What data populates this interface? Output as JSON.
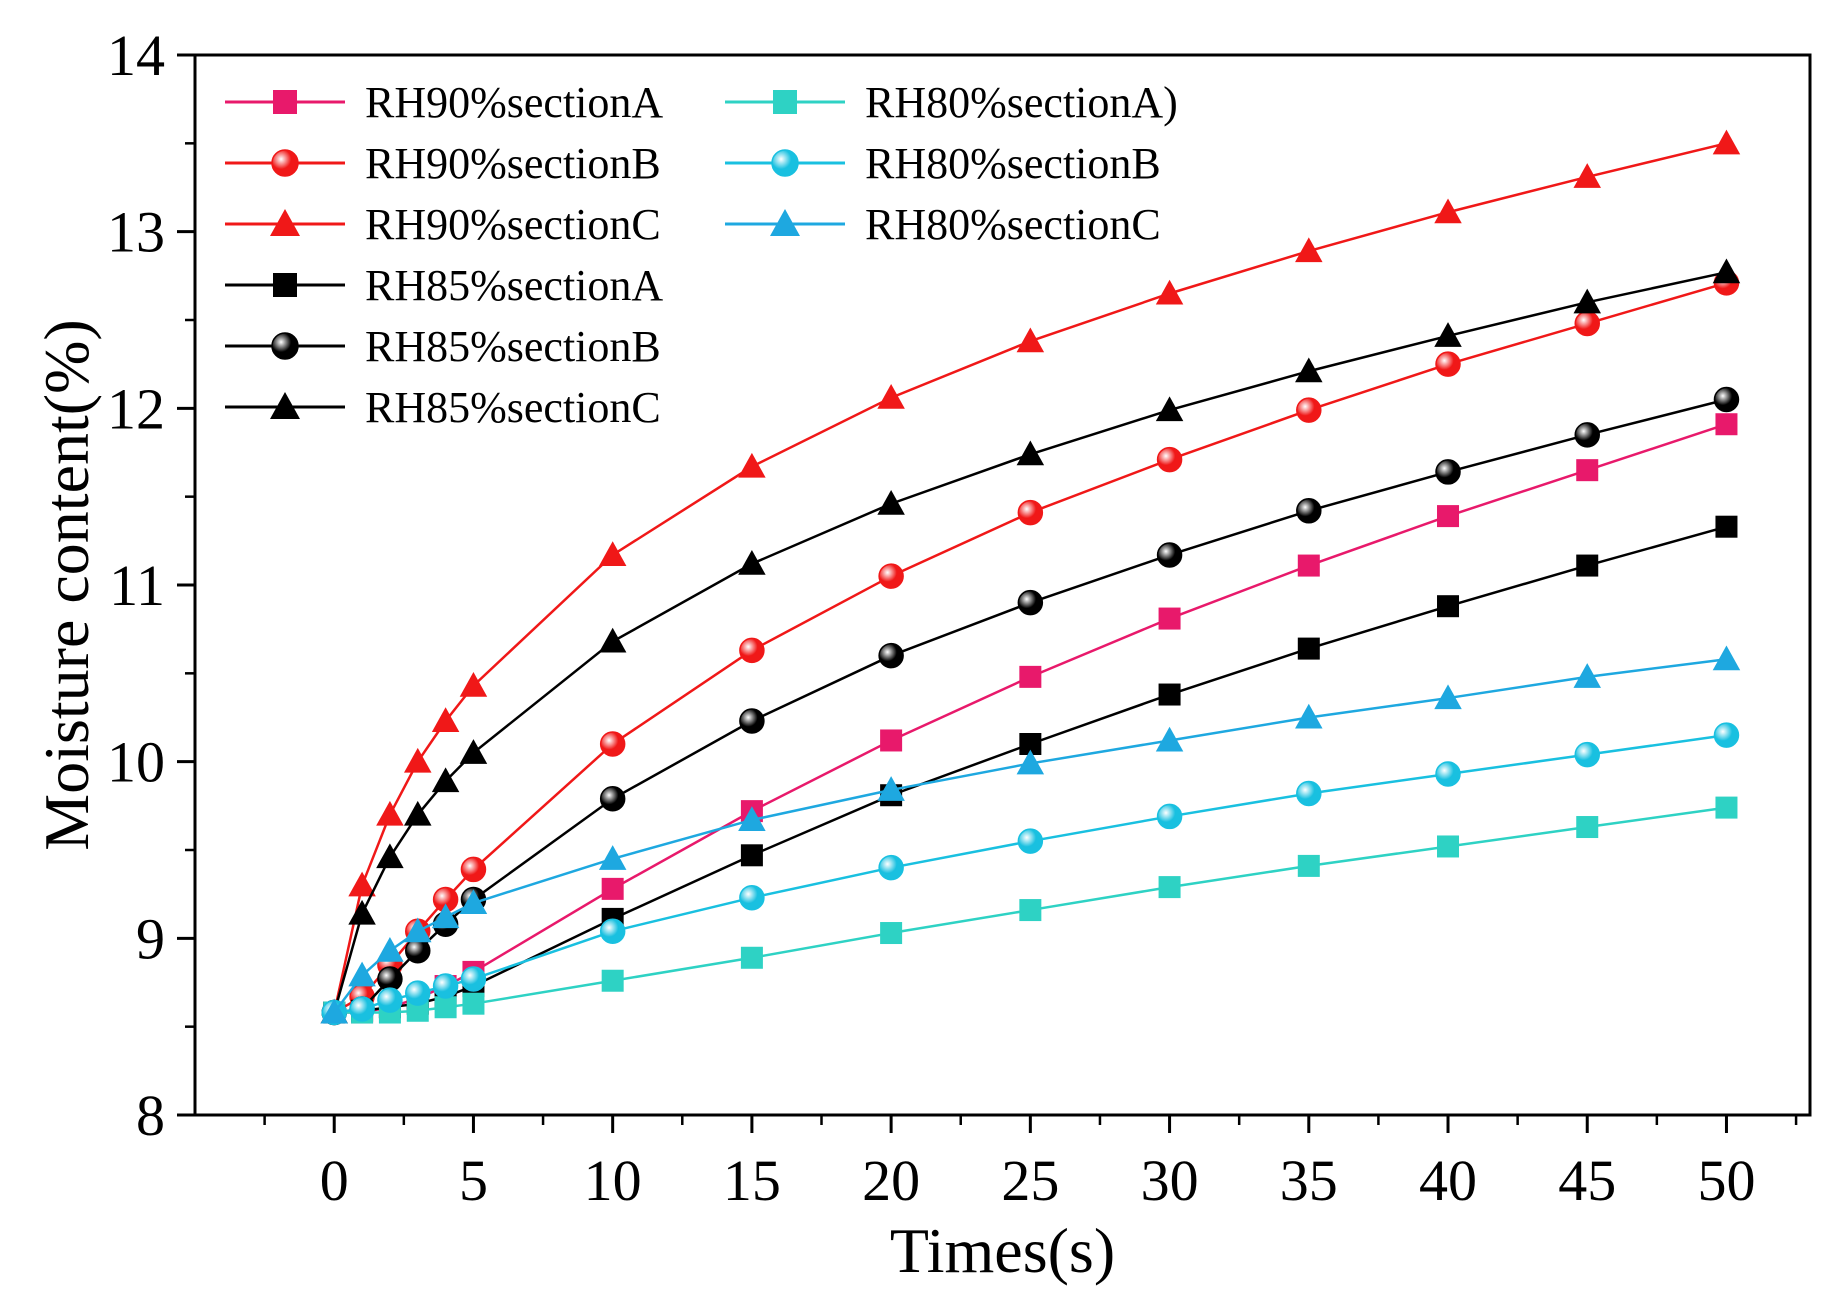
{
  "chart_data": {
    "type": "line",
    "title": "",
    "xlabel": "Times(s)",
    "ylabel": "Moisture content(%)",
    "xlim": [
      -5,
      53
    ],
    "ylim": [
      8,
      14
    ],
    "xticks": [
      0,
      5,
      10,
      15,
      20,
      25,
      30,
      35,
      40,
      45,
      50
    ],
    "yticks": [
      8,
      9,
      10,
      11,
      12,
      13,
      14
    ],
    "xtick_labels": [
      "0",
      "5",
      "10",
      "15",
      "20",
      "25",
      "30",
      "35",
      "40",
      "45",
      "50"
    ],
    "ytick_labels": [
      "8",
      "9",
      "10",
      "11",
      "12",
      "13",
      "14"
    ],
    "legend_position": "top-left",
    "x": [
      0,
      1,
      2,
      3,
      4,
      5,
      10,
      15,
      20,
      25,
      30,
      35,
      40,
      45,
      50
    ],
    "series": [
      {
        "name": "RH90%sectionA",
        "color": "#e8196b",
        "marker": "square",
        "values": [
          8.58,
          8.58,
          8.61,
          8.66,
          8.73,
          8.81,
          9.28,
          9.72,
          10.12,
          10.48,
          10.81,
          11.11,
          11.39,
          11.65,
          11.91
        ]
      },
      {
        "name": "RH90%sectionB",
        "color": "#f01818",
        "marker": "circle",
        "values": [
          8.58,
          8.67,
          8.85,
          9.04,
          9.22,
          9.39,
          10.1,
          10.63,
          11.05,
          11.41,
          11.71,
          11.99,
          12.25,
          12.48,
          12.71
        ]
      },
      {
        "name": "RH90%sectionC",
        "color": "#f01818",
        "marker": "triangle",
        "values": [
          8.58,
          9.3,
          9.7,
          10.0,
          10.23,
          10.43,
          11.17,
          11.67,
          12.06,
          12.38,
          12.65,
          12.89,
          13.11,
          13.31,
          13.5
        ]
      },
      {
        "name": "RH85%sectionA",
        "color": "#000000",
        "marker": "square",
        "values": [
          8.58,
          8.59,
          8.61,
          8.63,
          8.67,
          8.73,
          9.11,
          9.47,
          9.81,
          10.1,
          10.38,
          10.64,
          10.88,
          11.11,
          11.33
        ]
      },
      {
        "name": "RH85%sectionB",
        "color": "#000000",
        "marker": "circle",
        "values": [
          8.58,
          8.6,
          8.77,
          8.93,
          9.08,
          9.22,
          9.79,
          10.23,
          10.6,
          10.9,
          11.17,
          11.42,
          11.64,
          11.85,
          12.05
        ]
      },
      {
        "name": "RH85%sectionC",
        "color": "#000000",
        "marker": "triangle",
        "values": [
          8.58,
          9.14,
          9.46,
          9.7,
          9.89,
          10.05,
          10.68,
          11.12,
          11.46,
          11.74,
          11.99,
          12.21,
          12.41,
          12.6,
          12.77
        ]
      },
      {
        "name": "RH80%sectionA)",
        "color": "#2ed2c4",
        "marker": "square",
        "values": [
          8.58,
          8.58,
          8.58,
          8.59,
          8.61,
          8.63,
          8.76,
          8.89,
          9.03,
          9.16,
          9.29,
          9.41,
          9.52,
          9.63,
          9.74
        ]
      },
      {
        "name": "RH80%sectionB",
        "color": "#19c0e0",
        "marker": "circle",
        "values": [
          8.58,
          8.6,
          8.65,
          8.69,
          8.73,
          8.77,
          9.04,
          9.23,
          9.4,
          9.55,
          9.69,
          9.82,
          9.93,
          10.04,
          10.15
        ]
      },
      {
        "name": "RH80%sectionC",
        "color": "#1ea8e0",
        "marker": "triangle",
        "values": [
          8.58,
          8.79,
          8.93,
          9.04,
          9.12,
          9.2,
          9.45,
          9.67,
          9.84,
          9.99,
          10.12,
          10.25,
          10.36,
          10.48,
          10.58
        ]
      }
    ]
  }
}
